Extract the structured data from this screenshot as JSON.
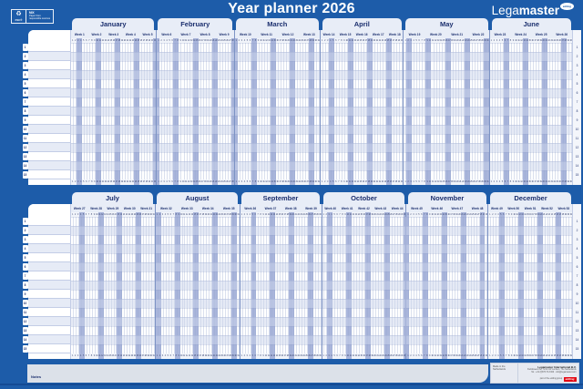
{
  "title": "Year planner 2026",
  "brand": {
    "name_light": "Lega",
    "name_bold": "master",
    "badge": "edding"
  },
  "certification": {
    "icon": "recycle-tree",
    "lines": [
      "MIX",
      "Paper from",
      "responsible sources",
      "FSC®"
    ]
  },
  "colors": {
    "background": "#1D5CA9",
    "panel_light": "#E8EDF7",
    "text_navy": "#1B2F6E",
    "weekend": "#A9B5DB",
    "row_alt": "#E6EBF6",
    "grid_line": "#C3CDE6",
    "notes_bg": "#DCE1E9",
    "edding_red": "#E30613"
  },
  "planner": {
    "year": "2026",
    "row_count": 15,
    "halves": [
      {
        "months": [
          {
            "name": "January",
            "days": 31,
            "first_weekday": 3,
            "weeks": [
              "Week 1",
              "Week 2",
              "Week 3",
              "Week 4",
              "Week 5"
            ]
          },
          {
            "name": "February",
            "days": 28,
            "first_weekday": 6,
            "weeks": [
              "Week 6",
              "Week 7",
              "Week 8",
              "Week 9"
            ]
          },
          {
            "name": "March",
            "days": 31,
            "first_weekday": 6,
            "weeks": [
              "Week 10",
              "Week 11",
              "Week 12",
              "Week 13"
            ]
          },
          {
            "name": "April",
            "days": 30,
            "first_weekday": 2,
            "weeks": [
              "Week 14",
              "Week 15",
              "Week 16",
              "Week 17",
              "Week 18"
            ]
          },
          {
            "name": "May",
            "days": 31,
            "first_weekday": 4,
            "weeks": [
              "Week 19",
              "Week 20",
              "Week 21",
              "Week 22"
            ]
          },
          {
            "name": "June",
            "days": 30,
            "first_weekday": 0,
            "weeks": [
              "Week 23",
              "Week 24",
              "Week 25",
              "Week 26"
            ]
          }
        ]
      },
      {
        "months": [
          {
            "name": "July",
            "days": 31,
            "first_weekday": 2,
            "weeks": [
              "Week 27",
              "Week 28",
              "Week 29",
              "Week 30",
              "Week 31"
            ]
          },
          {
            "name": "August",
            "days": 31,
            "first_weekday": 5,
            "weeks": [
              "Week 32",
              "Week 33",
              "Week 34",
              "Week 35"
            ]
          },
          {
            "name": "September",
            "days": 30,
            "first_weekday": 1,
            "weeks": [
              "Week 36",
              "Week 37",
              "Week 38",
              "Week 39"
            ]
          },
          {
            "name": "October",
            "days": 31,
            "first_weekday": 3,
            "weeks": [
              "Week 40",
              "Week 41",
              "Week 42",
              "Week 43",
              "Week 44"
            ]
          },
          {
            "name": "November",
            "days": 30,
            "first_weekday": 6,
            "weeks": [
              "Week 45",
              "Week 46",
              "Week 47",
              "Week 48"
            ]
          },
          {
            "name": "December",
            "days": 31,
            "first_weekday": 1,
            "weeks": [
              "Week 49",
              "Week 50",
              "Week 51",
              "Week 52",
              "Week 53"
            ]
          }
        ]
      }
    ]
  },
  "notes": {
    "label": "Notes"
  },
  "footer": {
    "made_in": "Made in the Netherlands",
    "company": "Legamaster International B.V.",
    "address": "Kwinkweerd 62, 7241 CW Lochem, The Netherlands",
    "contact": "Tel.: +31 (0)573 713 000 · info@legamaster.com",
    "tagline": "part of the edding group",
    "edding": "edding"
  }
}
